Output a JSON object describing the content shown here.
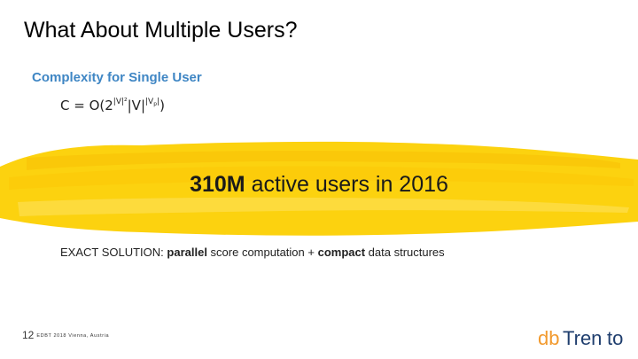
{
  "slide": {
    "title": "What About Multiple Users?",
    "subheading": "Complexity for Single User",
    "formula": {
      "lhs": "C = O(2",
      "exp1": "|V|²",
      "mid": "|V|",
      "exp2_base": "|V",
      "exp2_sub": "p",
      "exp2_end": "|",
      "close": ")"
    },
    "highlight": {
      "bold_value": "310M",
      "rest": " active users in 2016"
    },
    "solution": {
      "prefix": "EXACT SOLUTION: ",
      "bold1": "parallel",
      "mid": " score computation + ",
      "bold2": "compact",
      "suffix": " data structures"
    },
    "footer": {
      "page_number": "12",
      "event_text": "EDBT 2018 Vienna, Austria"
    },
    "logo": {
      "text_part1": "db",
      "text_part2": "Tren",
      "text_part3": "to"
    },
    "colors": {
      "accent_blue": "#3f86c4",
      "brush_yellow": "#fcd20f",
      "logo_orange": "#f29a2e",
      "logo_blue": "#1f3e6e"
    }
  }
}
